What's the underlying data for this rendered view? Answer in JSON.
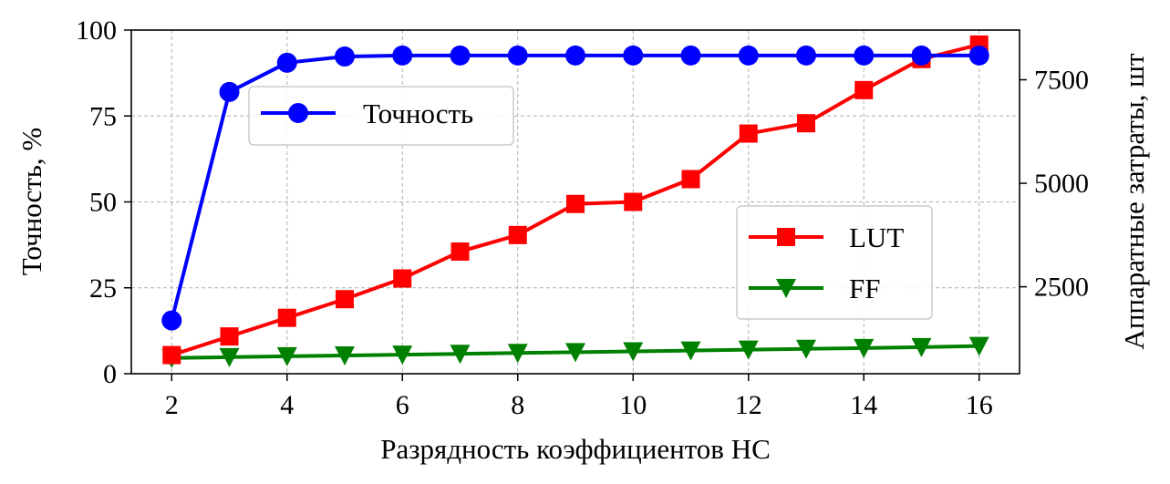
{
  "chart_data": {
    "type": "line",
    "xlabel": "Разрядность коэффициентов НС",
    "ylabel_left": "Точность, %",
    "ylabel_right": "Аппаратные затраты, шт",
    "x": [
      2,
      3,
      4,
      5,
      6,
      7,
      8,
      9,
      10,
      11,
      12,
      13,
      14,
      15,
      16
    ],
    "xlim": [
      1.3,
      16.7
    ],
    "xticks": [
      2,
      4,
      6,
      8,
      10,
      12,
      14,
      16
    ],
    "xtick_labels": [
      "2",
      "4",
      "6",
      "8",
      "10",
      "12",
      "14",
      "16"
    ],
    "ylim_left": [
      0,
      100
    ],
    "yticks_left": [
      0,
      25,
      50,
      75,
      100
    ],
    "ytick_labels_left": [
      "0",
      "25",
      "50",
      "75",
      "100"
    ],
    "ylim_right": [
      400,
      8700
    ],
    "yticks_right": [
      2500,
      5000,
      7500
    ],
    "ytick_labels_right": [
      "2500",
      "5000",
      "7500"
    ],
    "grid": true,
    "series": [
      {
        "name": "Точность",
        "axis": "left",
        "color": "#0000ff",
        "marker": "circle",
        "values": [
          15.5,
          82,
          90.5,
          92.3,
          92.6,
          92.6,
          92.6,
          92.6,
          92.6,
          92.6,
          92.6,
          92.6,
          92.6,
          92.6,
          92.6
        ]
      },
      {
        "name": "LUT",
        "axis": "right",
        "color": "#ff0000",
        "marker": "square",
        "values": [
          850,
          1300,
          1750,
          2200,
          2700,
          3350,
          3750,
          4500,
          4550,
          5100,
          6200,
          6450,
          7250,
          8000,
          8350
        ]
      },
      {
        "name": "FF",
        "axis": "right",
        "color": "#008000",
        "marker": "triangle-down",
        "values": [
          780,
          800,
          820,
          840,
          860,
          880,
          900,
          920,
          940,
          960,
          980,
          1000,
          1020,
          1040,
          1070
        ]
      }
    ],
    "legends": [
      {
        "placement": "upper-left",
        "entries": [
          "Точность"
        ]
      },
      {
        "placement": "center-right",
        "entries": [
          "LUT",
          "FF"
        ]
      }
    ]
  }
}
